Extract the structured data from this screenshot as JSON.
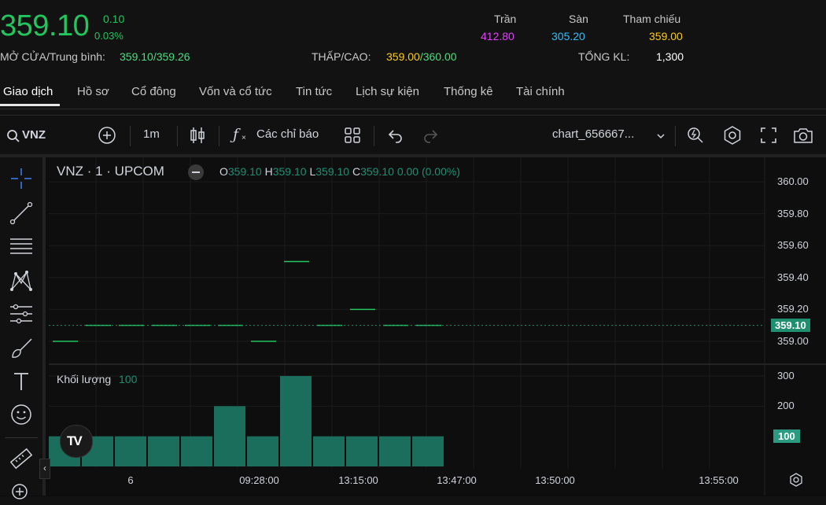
{
  "quote": {
    "price": "359.10",
    "change": "0.10",
    "change_pct": "0.03%",
    "open_avg_label": "MỞ CỬA/Trung bình:",
    "open": "359.10",
    "avg": "359.26",
    "lowhigh_label": "THẤP/CAO:",
    "low": "359.00",
    "high": "360.00",
    "ceiling_label": "Trần",
    "ceiling": "412.80",
    "floor_label": "Sàn",
    "floor": "305.20",
    "ref_label": "Tham chiếu",
    "ref": "359.00",
    "vol_label": "TỔNG KL:",
    "vol": "1,300",
    "slash": "/"
  },
  "tabs": [
    "Giao dịch",
    "Hồ sơ",
    "Cổ đông",
    "Vốn và cổ tức",
    "Tin tức",
    "Lịch sự kiện",
    "Thống kê",
    "Tài chính"
  ],
  "toolbar": {
    "symbol": "VNZ",
    "interval": "1m",
    "indicators": "Các chỉ báo",
    "layout_name": "chart_656667..."
  },
  "legend": {
    "title": "VNZ · 1 · UPCOM",
    "o_label": "O",
    "o": "359.10",
    "h_label": "H",
    "h": "359.10",
    "l_label": "L",
    "l": "359.10",
    "c_label": "C",
    "c": "359.10",
    "change": "0.00 (0.00%)",
    "volume_label": "Khối lượng",
    "volume_value": "100"
  },
  "colors": {
    "up": "#22c55e",
    "bar": "#1b6e5c",
    "tag": "#1f8f70"
  },
  "chart_data": {
    "type": "bar",
    "x_ticks": [
      "6",
      "09:28:00",
      "13:15:00",
      "13:47:00",
      "13:50:00",
      "13:55:00"
    ],
    "price_axis": [
      "360.00",
      "359.80",
      "359.60",
      "359.40",
      "359.20",
      "359.00"
    ],
    "price_ylim": [
      358.97,
      360.03
    ],
    "last_price_tag": "359.10",
    "price_ticks": [
      359.0,
      359.1,
      359.1,
      359.1,
      359.1,
      359.1,
      359.0,
      359.5,
      359.1,
      359.2,
      359.1,
      359.1
    ],
    "volume_axis": [
      "300",
      "200"
    ],
    "volume_ylim": [
      0,
      300
    ],
    "last_volume_tag": "100",
    "volume": [
      100,
      100,
      100,
      100,
      100,
      200,
      100,
      300,
      100,
      100,
      100,
      100
    ]
  }
}
